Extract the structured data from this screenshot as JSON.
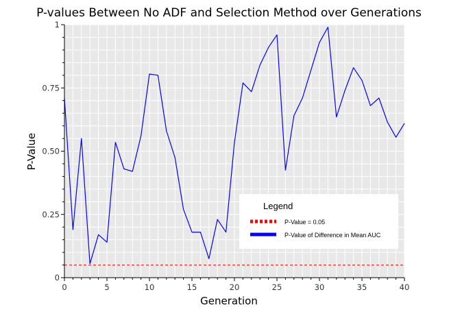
{
  "chart_data": {
    "type": "line",
    "title": "P-values Between No ADF and Selection Method over Generations",
    "xlabel": "Generation",
    "ylabel": "P-Value",
    "xlim": [
      0,
      40
    ],
    "ylim": [
      0,
      1
    ],
    "xticks": [
      0,
      5,
      10,
      15,
      20,
      25,
      30,
      35,
      40
    ],
    "xtick_labels": [
      "0",
      "5",
      "10",
      "15",
      "20",
      "25",
      "30",
      "35",
      "40"
    ],
    "yticks": [
      0,
      0.25,
      0.5,
      0.75,
      1
    ],
    "ytick_labels": [
      "0",
      "0.25",
      "0.50",
      "0.75",
      "1"
    ],
    "grid": true,
    "background_color": "#e8e8e8",
    "legend": {
      "title": "Legend",
      "position": "bottom-right",
      "entries": [
        {
          "label": "P-Value = 0.05",
          "color": "#ff0000",
          "style": "dotted"
        },
        {
          "label": "P-Value of Difference in Mean AUC",
          "color": "#0000ff",
          "style": "solid"
        }
      ]
    },
    "series": [
      {
        "name": "P-Value of Difference in Mean AUC",
        "color": "#0000ff",
        "style": "solid",
        "x": [
          0,
          1,
          2,
          3,
          4,
          5,
          6,
          7,
          8,
          9,
          10,
          11,
          12,
          13,
          14,
          15,
          16,
          17,
          18,
          19,
          20,
          21,
          22,
          23,
          24,
          25,
          26,
          27,
          28,
          29,
          30,
          31,
          32,
          33,
          34,
          35,
          36,
          37,
          38,
          39,
          40
        ],
        "y": [
          0.71,
          0.19,
          0.55,
          0.055,
          0.17,
          0.14,
          0.535,
          0.43,
          0.42,
          0.56,
          0.805,
          0.8,
          0.58,
          0.475,
          0.27,
          0.18,
          0.18,
          0.075,
          0.23,
          0.18,
          0.535,
          0.77,
          0.735,
          0.84,
          0.91,
          0.96,
          0.425,
          0.64,
          0.71,
          0.82,
          0.93,
          0.99,
          0.635,
          0.74,
          0.83,
          0.78,
          0.68,
          0.71,
          0.615,
          0.555,
          0.61
        ]
      },
      {
        "name": "P-Value = 0.05",
        "color": "#ff0000",
        "style": "dashed",
        "x": [
          0,
          40
        ],
        "y": [
          0.05,
          0.05
        ]
      }
    ]
  }
}
